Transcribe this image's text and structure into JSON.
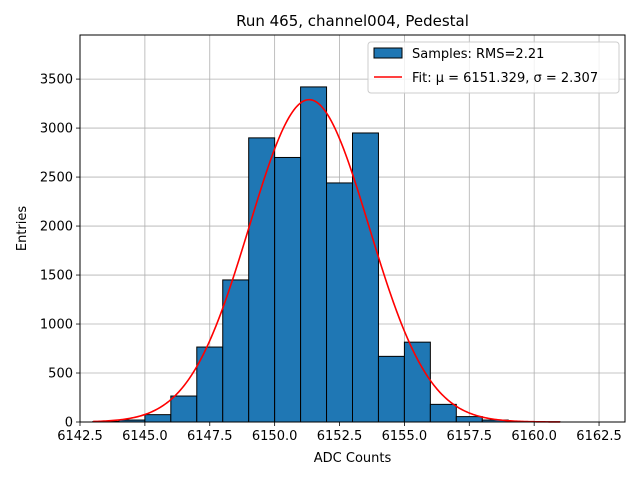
{
  "chart_data": {
    "type": "bar",
    "title": "Run 465, channel004, Pedestal",
    "xlabel": "ADC Counts",
    "ylabel": "Entries",
    "xlim": [
      6142.5,
      6163.5
    ],
    "ylim": [
      0,
      3950
    ],
    "xticks": [
      6142.5,
      6145.0,
      6147.5,
      6150.0,
      6152.5,
      6155.0,
      6157.5,
      6160.0,
      6162.5
    ],
    "xtick_labels": [
      "6142.5",
      "6145.0",
      "6147.5",
      "6150.0",
      "6152.5",
      "6155.0",
      "6157.5",
      "6160.0",
      "6162.5"
    ],
    "yticks": [
      0,
      500,
      1000,
      1500,
      2000,
      2500,
      3000,
      3500
    ],
    "ytick_labels": [
      "0",
      "500",
      "1000",
      "1500",
      "2000",
      "2500",
      "3000",
      "3500"
    ],
    "grid": true,
    "legend_position": "top-right",
    "bar_color": "#1f77b4",
    "fit_color": "#ff0000",
    "histogram": {
      "name": "Samples: RMS=2.21",
      "bin_edges": [
        6143.0,
        6144.0,
        6145.0,
        6146.0,
        6147.0,
        6148.0,
        6149.0,
        6150.0,
        6151.0,
        6152.0,
        6153.0,
        6154.0,
        6155.0,
        6156.0,
        6157.0,
        6158.0,
        6159.0,
        6160.0,
        6161.0
      ],
      "counts": [
        5,
        20,
        75,
        265,
        765,
        1450,
        2900,
        2700,
        3420,
        2440,
        2950,
        670,
        815,
        180,
        55,
        20,
        5,
        2
      ]
    },
    "fit": {
      "name": "Fit: μ = 6151.329, σ = 2.307",
      "mu": 6151.329,
      "sigma": 2.307,
      "amplitude": 3290,
      "x_range": [
        6143.0,
        6161.0
      ]
    }
  }
}
